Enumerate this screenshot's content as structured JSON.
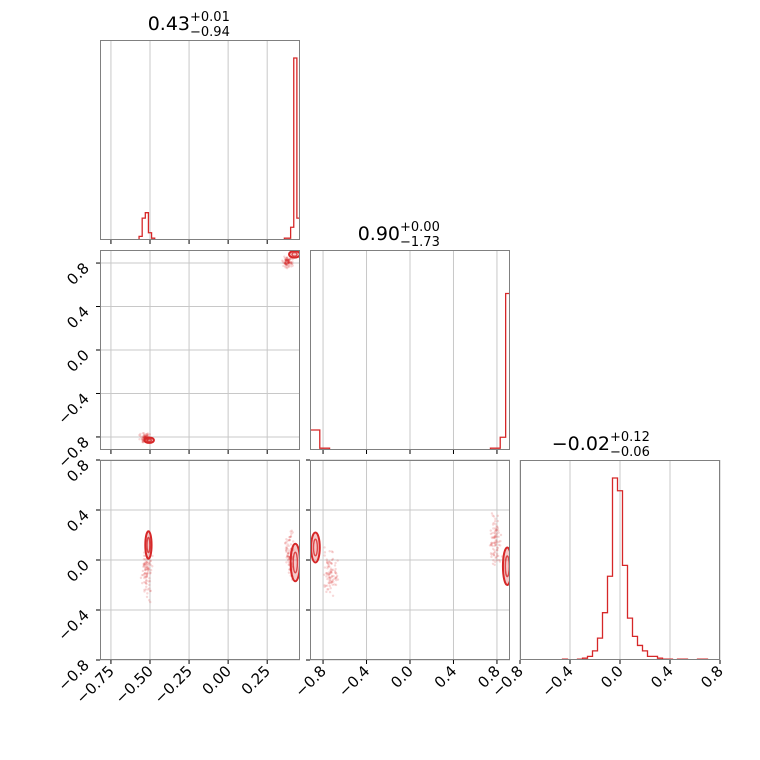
{
  "chart_data": {
    "type": "corner",
    "color": "#d62728",
    "grid": true,
    "titles": [
      {
        "param": 0,
        "value": "0.43",
        "plus": "+0.01",
        "minus": "−0.94"
      },
      {
        "param": 1,
        "value": "0.90",
        "plus": "+0.00",
        "minus": "−1.73"
      },
      {
        "param": 2,
        "value": "−0.02",
        "plus": "+0.12",
        "minus": "−0.06"
      }
    ],
    "ranges": [
      [
        -0.82,
        0.46
      ],
      [
        -0.92,
        0.92
      ],
      [
        -0.8,
        0.8
      ]
    ],
    "ticks": [
      {
        "values": [
          -0.75,
          -0.5,
          -0.25,
          0.0,
          0.25
        ],
        "labels": [
          "−0.75",
          "−0.50",
          "−0.25",
          "0.00",
          "0.25"
        ]
      },
      {
        "values": [
          -0.8,
          -0.4,
          0.0,
          0.4,
          0.8
        ],
        "labels": [
          "−0.8",
          "−0.4",
          "0.0",
          "0.4",
          "0.8"
        ]
      },
      {
        "values": [
          -0.8,
          -0.4,
          0.0,
          0.4,
          0.8
        ],
        "labels": [
          "−0.8",
          "−0.4",
          "0.0",
          "0.4",
          "0.8"
        ]
      }
    ],
    "histograms": [
      {
        "param": 0,
        "bins": [
          [
            -0.57,
            -0.55,
            0.02
          ],
          [
            -0.55,
            -0.53,
            0.12
          ],
          [
            -0.53,
            -0.51,
            0.15
          ],
          [
            -0.51,
            -0.49,
            0.04
          ],
          [
            -0.49,
            -0.47,
            0.01
          ],
          [
            0.36,
            0.38,
            0.01
          ],
          [
            0.38,
            0.4,
            0.01
          ],
          [
            0.4,
            0.42,
            0.07
          ],
          [
            0.42,
            0.44,
            1.0
          ],
          [
            0.44,
            0.46,
            0.12
          ]
        ]
      },
      {
        "param": 1,
        "bins": [
          [
            -0.92,
            -0.83,
            0.11
          ],
          [
            -0.83,
            -0.74,
            0.01
          ],
          [
            0.74,
            0.83,
            0.01
          ],
          [
            0.83,
            0.88,
            0.07
          ],
          [
            0.88,
            0.92,
            0.86
          ]
        ]
      },
      {
        "param": 2,
        "bins": [
          [
            -0.46,
            -0.42,
            0.005
          ],
          [
            -0.34,
            -0.3,
            0.005
          ],
          [
            -0.3,
            -0.26,
            0.01
          ],
          [
            -0.26,
            -0.22,
            0.02
          ],
          [
            -0.22,
            -0.18,
            0.05
          ],
          [
            -0.18,
            -0.14,
            0.12
          ],
          [
            -0.14,
            -0.1,
            0.26
          ],
          [
            -0.1,
            -0.06,
            0.46
          ],
          [
            -0.06,
            -0.02,
            1.0
          ],
          [
            -0.02,
            0.02,
            0.93
          ],
          [
            0.02,
            0.06,
            0.52
          ],
          [
            0.06,
            0.1,
            0.23
          ],
          [
            0.1,
            0.14,
            0.13
          ],
          [
            0.14,
            0.18,
            0.08
          ],
          [
            0.18,
            0.22,
            0.05
          ],
          [
            0.22,
            0.26,
            0.02
          ],
          [
            0.26,
            0.3,
            0.02
          ],
          [
            0.3,
            0.34,
            0.01
          ],
          [
            0.34,
            0.42,
            0.005
          ],
          [
            0.46,
            0.54,
            0.005
          ],
          [
            0.62,
            0.7,
            0.005
          ]
        ]
      }
    ],
    "scatter_2d": [
      {
        "x_param": 0,
        "y_param": 1,
        "clusters": [
          {
            "x": [
              -0.62,
              -0.44
            ],
            "y": [
              -0.92,
              -0.7
            ]
          },
          {
            "x": [
              0.3,
              0.46
            ],
            "y": [
              0.7,
              0.92
            ]
          }
        ],
        "contours": [
          {
            "cx": -0.505,
            "cy": -0.83,
            "rx": 0.03,
            "ry": 0.025
          },
          {
            "cx": 0.425,
            "cy": 0.88,
            "rx": 0.035,
            "ry": 0.03
          }
        ]
      },
      {
        "x_param": 0,
        "y_param": 2,
        "clusters": [
          {
            "x": [
              -0.6,
              -0.44
            ],
            "y": [
              -0.6,
              0.4
            ]
          },
          {
            "x": [
              0.33,
              0.46
            ],
            "y": [
              -0.4,
              0.5
            ]
          }
        ],
        "contours": [
          {
            "cx": -0.51,
            "cy": 0.12,
            "rx": 0.02,
            "ry": 0.11
          },
          {
            "cx": 0.43,
            "cy": -0.02,
            "rx": 0.03,
            "ry": 0.15
          }
        ]
      },
      {
        "x_param": 1,
        "y_param": 2,
        "clusters": [
          {
            "x": [
              -0.92,
              -0.55
            ],
            "y": [
              -0.6,
              0.35
            ]
          },
          {
            "x": [
              0.65,
              0.92
            ],
            "y": [
              -0.4,
              0.7
            ]
          }
        ],
        "contours": [
          {
            "cx": -0.87,
            "cy": 0.1,
            "rx": 0.04,
            "ry": 0.12
          },
          {
            "cx": 0.895,
            "cy": -0.05,
            "rx": 0.04,
            "ry": 0.15
          }
        ]
      }
    ]
  }
}
